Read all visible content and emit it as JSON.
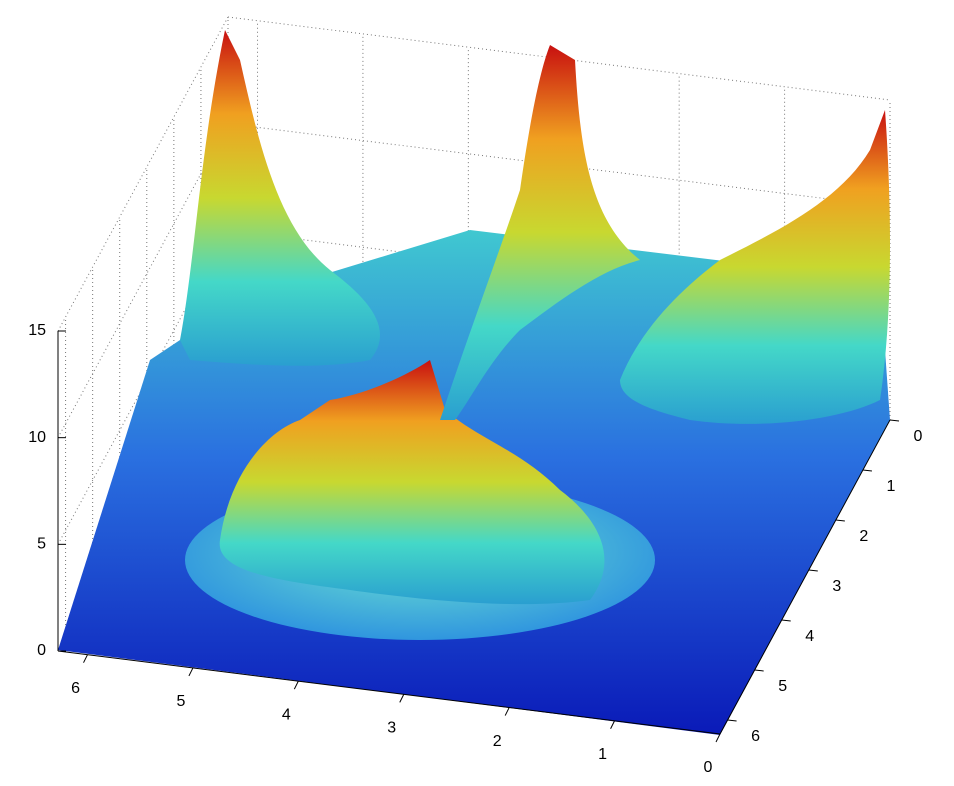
{
  "chart_data": {
    "type": "surface",
    "xlim": [
      0,
      6.28
    ],
    "xticks": [
      0,
      1,
      2,
      3,
      4,
      5,
      6
    ],
    "ylim": [
      0,
      6.28
    ],
    "yticks": [
      0,
      1,
      2,
      3,
      4,
      5,
      6
    ],
    "zlim": [
      0,
      15
    ],
    "zticks": [
      0,
      5,
      10,
      15
    ],
    "grid": true
  }
}
